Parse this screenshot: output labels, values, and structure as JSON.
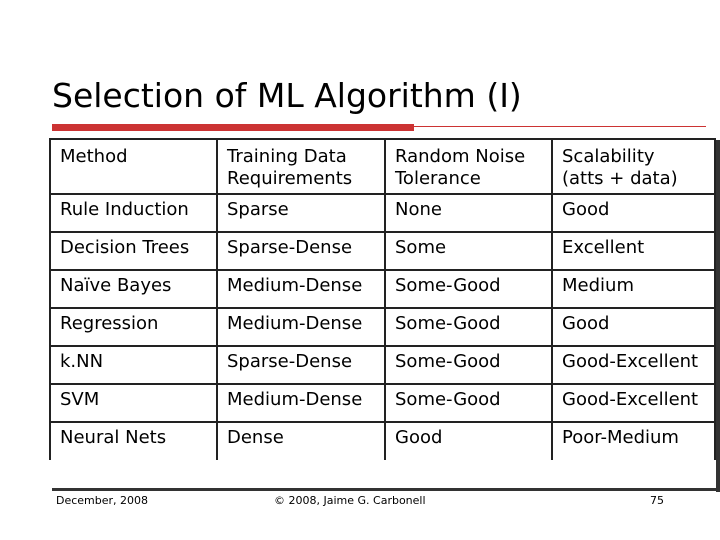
{
  "slide": {
    "title": "Selection of ML Algorithm (I)",
    "accent_color": "#cc3333"
  },
  "table": {
    "headers": [
      "Method",
      "Training Data Requirements",
      "Random Noise Tolerance",
      "Scalability (atts + data)"
    ],
    "header_lines": [
      [
        "Method",
        ""
      ],
      [
        "Training Data",
        "Requirements"
      ],
      [
        "Random Noise",
        "Tolerance"
      ],
      [
        "Scalability",
        "(atts + data)"
      ]
    ],
    "rows": [
      [
        "Rule Induction",
        "Sparse",
        "None",
        "Good"
      ],
      [
        "Decision Trees",
        "Sparse-Dense",
        "Some",
        "Excellent"
      ],
      [
        "Naïve Bayes",
        "Medium-Dense",
        "Some-Good",
        "Medium"
      ],
      [
        "Regression",
        "Medium-Dense",
        "Some-Good",
        "Good"
      ],
      [
        "k.NN",
        "Sparse-Dense",
        "Some-Good",
        "Good-Excellent"
      ],
      [
        "SVM",
        "Medium-Dense",
        "Some-Good",
        "Good-Excellent"
      ],
      [
        "Neural Nets",
        "Dense",
        "Good",
        "Poor-Medium"
      ]
    ]
  },
  "footer": {
    "date": "December, 2008",
    "copyright": "© 2008, Jaime G. Carbonell",
    "page_number": "75"
  }
}
